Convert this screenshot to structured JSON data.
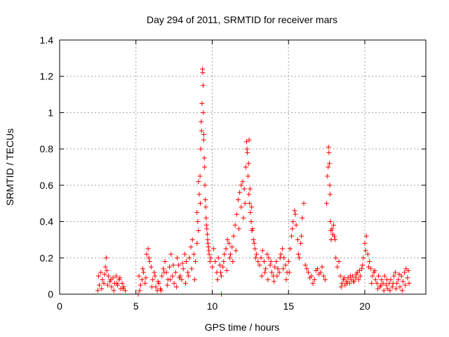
{
  "chart_data": {
    "type": "scatter",
    "title": "Day 294 of 2011, SRMTID for receiver mars",
    "xlabel": "GPS time / hours",
    "ylabel": "SRMTID / TECUs",
    "xlim": [
      0,
      24
    ],
    "ylim": [
      0,
      1.4
    ],
    "xticks": [
      0,
      5,
      10,
      15,
      20
    ],
    "yticks": [
      0,
      0.2,
      0.4,
      0.6,
      0.8,
      1,
      1.2,
      1.4
    ],
    "xtick_labels": [
      "0",
      "5",
      "10",
      "15",
      "20"
    ],
    "ytick_labels": [
      "0",
      "0.2",
      "0.4",
      "0.6",
      "0.8",
      "1",
      "1.2",
      "1.4"
    ],
    "grid": true,
    "marker": "+",
    "color": "#ff0000",
    "series": [
      {
        "name": "SRMTID",
        "x": [
          2.5,
          2.6,
          2.7,
          2.8,
          2.9,
          3.0,
          3.05,
          3.1,
          3.2,
          3.3,
          3.4,
          3.5,
          3.6,
          3.7,
          3.8,
          3.9,
          4.0,
          4.1,
          4.2,
          4.3,
          2.55,
          2.75,
          2.95,
          3.15,
          3.35,
          3.55,
          3.75,
          3.95,
          4.15,
          5.2,
          5.3,
          5.4,
          5.5,
          5.6,
          5.7,
          5.8,
          5.9,
          6.0,
          6.1,
          6.2,
          6.3,
          6.4,
          6.5,
          6.6,
          6.7,
          6.8,
          6.9,
          7.0,
          7.1,
          7.2,
          7.3,
          7.4,
          7.5,
          7.6,
          7.7,
          7.8,
          7.9,
          8.0,
          8.1,
          8.2,
          8.3,
          8.4,
          8.5,
          8.6,
          8.7,
          8.8,
          8.9,
          9.0,
          9.1,
          5.25,
          5.45,
          5.65,
          5.85,
          6.05,
          6.25,
          6.45,
          6.65,
          6.85,
          7.05,
          7.25,
          7.45,
          7.65,
          7.85,
          8.05,
          8.25,
          8.45,
          8.65,
          8.85,
          9.0,
          9.1,
          9.15,
          9.2,
          9.25,
          9.3,
          9.33,
          9.36,
          9.4,
          9.42,
          9.45,
          9.48,
          9.5,
          9.52,
          9.55,
          9.6,
          9.65,
          9.7,
          9.75,
          9.8,
          9.85,
          9.9,
          10.0,
          10.1,
          10.2,
          9.05,
          9.22,
          9.28,
          9.38,
          9.44,
          9.58,
          9.62,
          9.68,
          9.72,
          9.78,
          10.3,
          10.4,
          10.5,
          10.6,
          10.7,
          10.8,
          10.9,
          11.0,
          11.1,
          11.2,
          11.3,
          11.4,
          11.5,
          11.6,
          11.7,
          11.8,
          11.9,
          10.35,
          10.55,
          10.75,
          10.95,
          11.15,
          11.35,
          11.55,
          11.75,
          11.9,
          12.0,
          12.1,
          12.2,
          12.25,
          12.3,
          12.35,
          12.4,
          12.45,
          12.5,
          12.55,
          12.6,
          12.7,
          12.8,
          12.9,
          13.0,
          13.1,
          12.05,
          12.15,
          12.28,
          12.38,
          12.42,
          12.48,
          12.58,
          12.65,
          12.75,
          12.85,
          13.2,
          13.3,
          13.4,
          13.5,
          13.6,
          13.7,
          13.8,
          13.9,
          14.0,
          14.1,
          14.2,
          14.3,
          14.4,
          14.5,
          14.6,
          14.7,
          14.8,
          14.9,
          13.25,
          13.45,
          13.65,
          13.85,
          14.05,
          14.25,
          14.45,
          14.65,
          14.85,
          15.0,
          15.1,
          15.2,
          15.3,
          15.4,
          15.5,
          15.6,
          15.7,
          15.8,
          15.9,
          16.0,
          15.05,
          15.25,
          15.45,
          15.65,
          15.85,
          16.1,
          16.3,
          16.5,
          16.7,
          16.9,
          17.1,
          17.3,
          17.5,
          17.6,
          17.65,
          17.7,
          17.75,
          17.8,
          17.85,
          17.9,
          18.0,
          18.1,
          18.2,
          18.3,
          16.2,
          16.4,
          16.6,
          16.8,
          17.0,
          17.2,
          17.4,
          17.55,
          17.62,
          17.68,
          17.72,
          17.78,
          17.95,
          18.05,
          18.4,
          18.5,
          18.6,
          18.7,
          18.8,
          18.9,
          19.0,
          19.1,
          19.2,
          19.3,
          19.4,
          19.5,
          19.6,
          19.7,
          19.8,
          19.9,
          20.0,
          20.1,
          20.2,
          20.3,
          18.45,
          18.65,
          18.85,
          19.05,
          19.25,
          19.45,
          19.65,
          19.85,
          20.05,
          20.25,
          20.4,
          20.5,
          20.6,
          20.7,
          20.8,
          20.9,
          21.0,
          21.1,
          21.2,
          21.3,
          21.4,
          21.5,
          21.6,
          21.7,
          21.8,
          21.9,
          22.0,
          22.1,
          22.2,
          22.3,
          22.4,
          22.5,
          22.6,
          22.7,
          22.8,
          22.9,
          20.45,
          20.65,
          20.85,
          21.05,
          21.25,
          21.45,
          21.65,
          21.85,
          22.05,
          22.25,
          22.45,
          22.65,
          22.85,
          5.15,
          10.6
        ],
        "y": [
          0.02,
          0.05,
          0.12,
          0.08,
          0.06,
          0.15,
          0.2,
          0.13,
          0.1,
          0.07,
          0.04,
          0.09,
          0.06,
          0.1,
          0.05,
          0.08,
          0.03,
          0.06,
          0.04,
          0.02,
          0.1,
          0.03,
          0.11,
          0.05,
          0.08,
          0.02,
          0.06,
          0.09,
          0.03,
          0.1,
          0.05,
          0.08,
          0.12,
          0.06,
          0.22,
          0.25,
          0.18,
          0.15,
          0.08,
          0.12,
          0.04,
          0.02,
          0.06,
          0.03,
          0.1,
          0.14,
          0.18,
          0.12,
          0.08,
          0.15,
          0.22,
          0.1,
          0.06,
          0.12,
          0.2,
          0.16,
          0.1,
          0.08,
          0.14,
          0.22,
          0.18,
          0.12,
          0.2,
          0.26,
          0.3,
          0.22,
          0.18,
          0.28,
          0.35,
          0.02,
          0.14,
          0.09,
          0.2,
          0.04,
          0.1,
          0.07,
          0.02,
          0.12,
          0.05,
          0.08,
          0.16,
          0.04,
          0.09,
          0.17,
          0.06,
          0.1,
          0.14,
          0.08,
          0.45,
          0.62,
          0.55,
          0.65,
          0.8,
          0.9,
          1.05,
          1.24,
          1.15,
          1.0,
          0.88,
          0.75,
          0.7,
          0.6,
          0.52,
          0.42,
          0.36,
          0.3,
          0.26,
          0.22,
          0.18,
          0.2,
          0.15,
          0.25,
          0.18,
          0.4,
          0.5,
          0.95,
          1.22,
          0.85,
          0.48,
          0.38,
          0.33,
          0.28,
          0.24,
          0.12,
          0.2,
          0.16,
          0.1,
          0.15,
          0.22,
          0.25,
          0.3,
          0.28,
          0.22,
          0.26,
          0.32,
          0.38,
          0.44,
          0.52,
          0.56,
          0.48,
          0.08,
          0.12,
          0.18,
          0.13,
          0.2,
          0.18,
          0.24,
          0.36,
          0.6,
          0.62,
          0.58,
          0.7,
          0.84,
          0.78,
          0.65,
          0.55,
          0.5,
          0.45,
          0.4,
          0.35,
          0.3,
          0.25,
          0.22,
          0.18,
          0.16,
          0.42,
          0.5,
          0.8,
          0.72,
          0.85,
          0.58,
          0.48,
          0.36,
          0.28,
          0.2,
          0.2,
          0.24,
          0.18,
          0.14,
          0.22,
          0.2,
          0.16,
          0.12,
          0.1,
          0.15,
          0.18,
          0.14,
          0.12,
          0.22,
          0.25,
          0.2,
          0.16,
          0.12,
          0.1,
          0.12,
          0.08,
          0.18,
          0.07,
          0.1,
          0.2,
          0.14,
          0.08,
          0.18,
          0.25,
          0.32,
          0.4,
          0.46,
          0.38,
          0.3,
          0.2,
          0.28,
          0.42,
          0.5,
          0.12,
          0.36,
          0.44,
          0.22,
          0.32,
          0.16,
          0.12,
          0.1,
          0.08,
          0.14,
          0.12,
          0.1,
          0.5,
          0.7,
          0.78,
          0.6,
          0.4,
          0.3,
          0.36,
          0.33,
          0.32,
          0.2,
          0.15,
          0.18,
          0.14,
          0.09,
          0.06,
          0.13,
          0.11,
          0.15,
          0.08,
          0.65,
          0.81,
          0.72,
          0.55,
          0.35,
          0.38,
          0.3,
          0.1,
          0.06,
          0.08,
          0.05,
          0.07,
          0.09,
          0.06,
          0.08,
          0.1,
          0.07,
          0.09,
          0.12,
          0.08,
          0.1,
          0.14,
          0.2,
          0.28,
          0.32,
          0.22,
          0.18,
          0.04,
          0.09,
          0.06,
          0.1,
          0.07,
          0.11,
          0.13,
          0.16,
          0.24,
          0.15,
          0.14,
          0.1,
          0.12,
          0.08,
          0.06,
          0.1,
          0.04,
          0.08,
          0.06,
          0.1,
          0.05,
          0.03,
          0.06,
          0.08,
          0.04,
          0.1,
          0.12,
          0.06,
          0.08,
          0.04,
          0.1,
          0.07,
          0.12,
          0.14,
          0.09,
          0.06,
          0.06,
          0.13,
          0.03,
          0.05,
          0.02,
          0.08,
          0.02,
          0.06,
          0.03,
          0.11,
          0.02,
          0.05,
          0.13,
          0.0,
          0.0
        ]
      }
    ]
  }
}
